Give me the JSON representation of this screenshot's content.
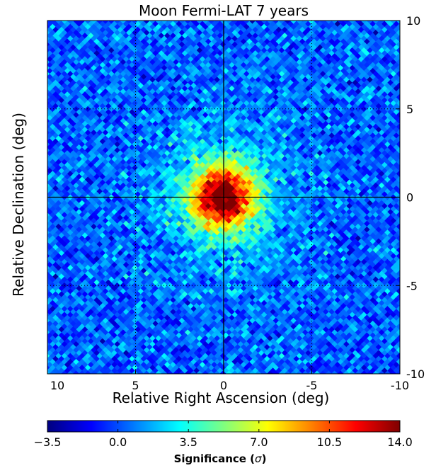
{
  "chart_data": {
    "type": "heatmap",
    "title": "Moon Fermi-LAT 7 years",
    "xlabel": "Relative Right Ascension (deg)",
    "ylabel": "Relative Declination (deg)",
    "xlim": [
      10,
      -10
    ],
    "ylim": [
      -10,
      10
    ],
    "x_ticks": [
      "10",
      "5",
      "0",
      "-5",
      "-10"
    ],
    "x_tick_values": [
      10,
      5,
      0,
      -5,
      -10
    ],
    "y_ticks": [
      "10",
      "5",
      "0",
      "-5",
      "-10"
    ],
    "y_tick_values": [
      10,
      5,
      0,
      -5,
      -10
    ],
    "grid": true,
    "grid_style": "dotted",
    "crosshair": [
      0,
      0
    ],
    "colormap": "jet",
    "peak": {
      "x": 0,
      "y": 0,
      "value": 14.0
    },
    "background_value": 0.0,
    "colorbar": {
      "label": "Significance (",
      "symbol": "σ",
      "label_close": ")",
      "min": -3.5,
      "max": 14.0,
      "ticks": [
        "−3.5",
        "0.0",
        "3.5",
        "7.0",
        "10.5",
        "14.0"
      ],
      "tick_values": [
        -3.5,
        0.0,
        3.5,
        7.0,
        10.5,
        14.0
      ]
    }
  }
}
